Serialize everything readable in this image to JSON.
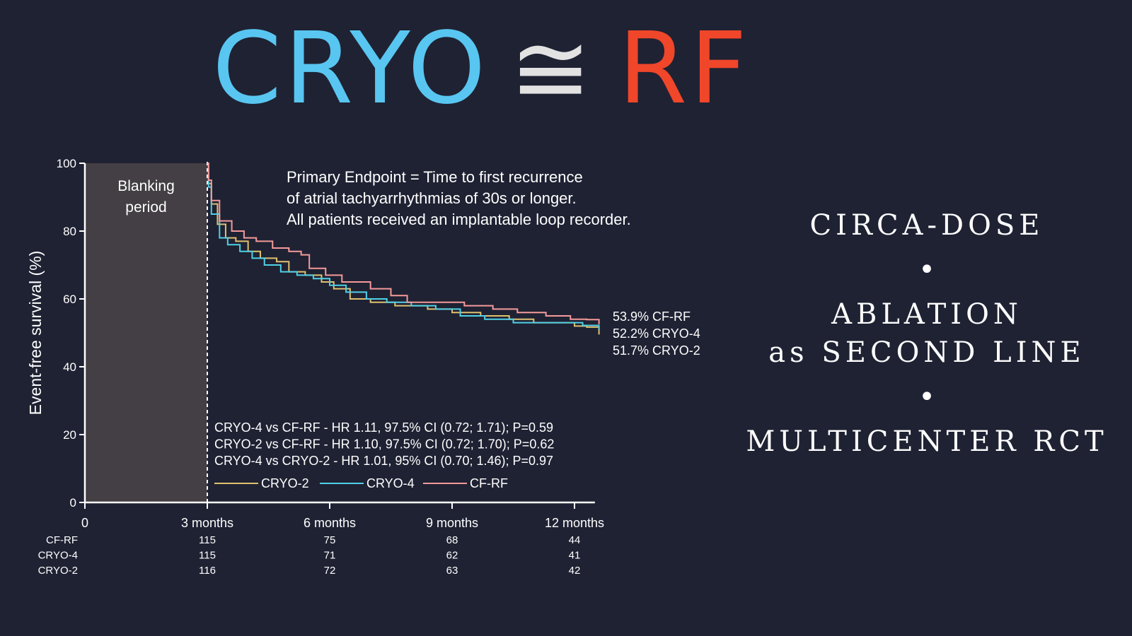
{
  "headline": {
    "left": "CRYO",
    "symbol": "≅",
    "right": "RF"
  },
  "side": {
    "line1": "CIRCA-DOSE",
    "bullet": "•",
    "line2": "ABLATION",
    "line3": "as SECOND LINE",
    "line4": "MULTICENTER RCT"
  },
  "colors": {
    "background": "#1f2233",
    "cryo_title": "#58c6f0",
    "rf_title": "#f0462a",
    "cryo2": "#e0c070",
    "cryo4": "#4fd0e6",
    "cfrf": "#f49a9a",
    "blanking": "#433f44"
  },
  "chart_data": {
    "type": "line",
    "ylabel": "Event-free survival (%)",
    "ylim": [
      0,
      100
    ],
    "yticks": [
      0,
      20,
      40,
      60,
      80,
      100
    ],
    "xlim": [
      0,
      12.5
    ],
    "xticks": [
      {
        "value": 0,
        "label": "0"
      },
      {
        "value": 3,
        "label": "3 months"
      },
      {
        "value": 6,
        "label": "6 months"
      },
      {
        "value": 9,
        "label": "9 months"
      },
      {
        "value": 12,
        "label": "12 months"
      }
    ],
    "blanking": {
      "label_line1": "Blanking",
      "label_line2": "period",
      "range": [
        0,
        3
      ]
    },
    "note": [
      "Primary Endpoint = Time to first recurrence",
      "of atrial tachyarrhythmias of 30s or longer.",
      "All patients received an implantable loop recorder."
    ],
    "stats": [
      "CRYO-4 vs CF-RF - HR 1.11, 97.5% CI (0.72; 1.71); P=0.59",
      "CRYO-2 vs CF-RF - HR 1.10, 97.5% CI (0.72; 1.70); P=0.62",
      "CRYO-4 vs CRYO-2 - HR 1.01, 95% CI (0.70; 1.46); P=0.97"
    ],
    "end_labels": [
      "53.9% CF-RF",
      "52.2% CRYO-4",
      "51.7% CRYO-2"
    ],
    "series": [
      {
        "name": "CRYO-2",
        "color": "#e0c070",
        "points": [
          [
            3,
            100
          ],
          [
            3.03,
            94
          ],
          [
            3.1,
            88
          ],
          [
            3.25,
            82
          ],
          [
            3.45,
            78
          ],
          [
            3.7,
            77
          ],
          [
            4.0,
            74
          ],
          [
            4.3,
            72
          ],
          [
            4.7,
            71
          ],
          [
            5.0,
            68
          ],
          [
            5.4,
            67
          ],
          [
            5.8,
            65
          ],
          [
            6.1,
            63
          ],
          [
            6.5,
            60
          ],
          [
            7.0,
            59
          ],
          [
            7.6,
            58
          ],
          [
            8.4,
            57
          ],
          [
            9.0,
            56
          ],
          [
            9.7,
            55
          ],
          [
            10.4,
            54
          ],
          [
            11.0,
            53
          ],
          [
            11.5,
            53
          ],
          [
            12.0,
            52
          ],
          [
            12.3,
            51.7
          ],
          [
            12.6,
            49.5
          ]
        ]
      },
      {
        "name": "CRYO-4",
        "color": "#4fd0e6",
        "points": [
          [
            3,
            100
          ],
          [
            3.03,
            93
          ],
          [
            3.1,
            85
          ],
          [
            3.3,
            78
          ],
          [
            3.5,
            76
          ],
          [
            3.8,
            74
          ],
          [
            4.1,
            72
          ],
          [
            4.4,
            70
          ],
          [
            4.8,
            68
          ],
          [
            5.2,
            67
          ],
          [
            5.6,
            66
          ],
          [
            6.0,
            64
          ],
          [
            6.4,
            62
          ],
          [
            6.9,
            60
          ],
          [
            7.4,
            59
          ],
          [
            8.0,
            58
          ],
          [
            8.6,
            57
          ],
          [
            9.2,
            55
          ],
          [
            9.8,
            54
          ],
          [
            10.5,
            53
          ],
          [
            11.2,
            53
          ],
          [
            11.8,
            53
          ],
          [
            12.2,
            52.2
          ],
          [
            12.6,
            51
          ]
        ]
      },
      {
        "name": "CF-RF",
        "color": "#f49a9a",
        "points": [
          [
            3,
            100
          ],
          [
            3.03,
            95
          ],
          [
            3.1,
            89
          ],
          [
            3.3,
            83
          ],
          [
            3.6,
            80
          ],
          [
            3.9,
            78
          ],
          [
            4.2,
            77
          ],
          [
            4.6,
            75
          ],
          [
            5.0,
            74
          ],
          [
            5.3,
            73
          ],
          [
            5.5,
            69
          ],
          [
            5.9,
            67
          ],
          [
            6.3,
            65
          ],
          [
            7.0,
            63
          ],
          [
            7.5,
            61
          ],
          [
            7.9,
            59
          ],
          [
            8.6,
            59
          ],
          [
            9.3,
            58
          ],
          [
            10.0,
            57
          ],
          [
            10.6,
            56
          ],
          [
            11.3,
            55
          ],
          [
            11.9,
            54
          ],
          [
            12.3,
            53.9
          ],
          [
            12.6,
            52.5
          ]
        ]
      }
    ],
    "at_risk": {
      "rows": [
        {
          "name": "CF-RF",
          "values": [
            115,
            75,
            68,
            44
          ]
        },
        {
          "name": "CRYO-4",
          "values": [
            115,
            71,
            62,
            41
          ]
        },
        {
          "name": "CRYO-2",
          "values": [
            116,
            72,
            63,
            42
          ]
        }
      ],
      "x": [
        3,
        6,
        9,
        12
      ]
    }
  }
}
